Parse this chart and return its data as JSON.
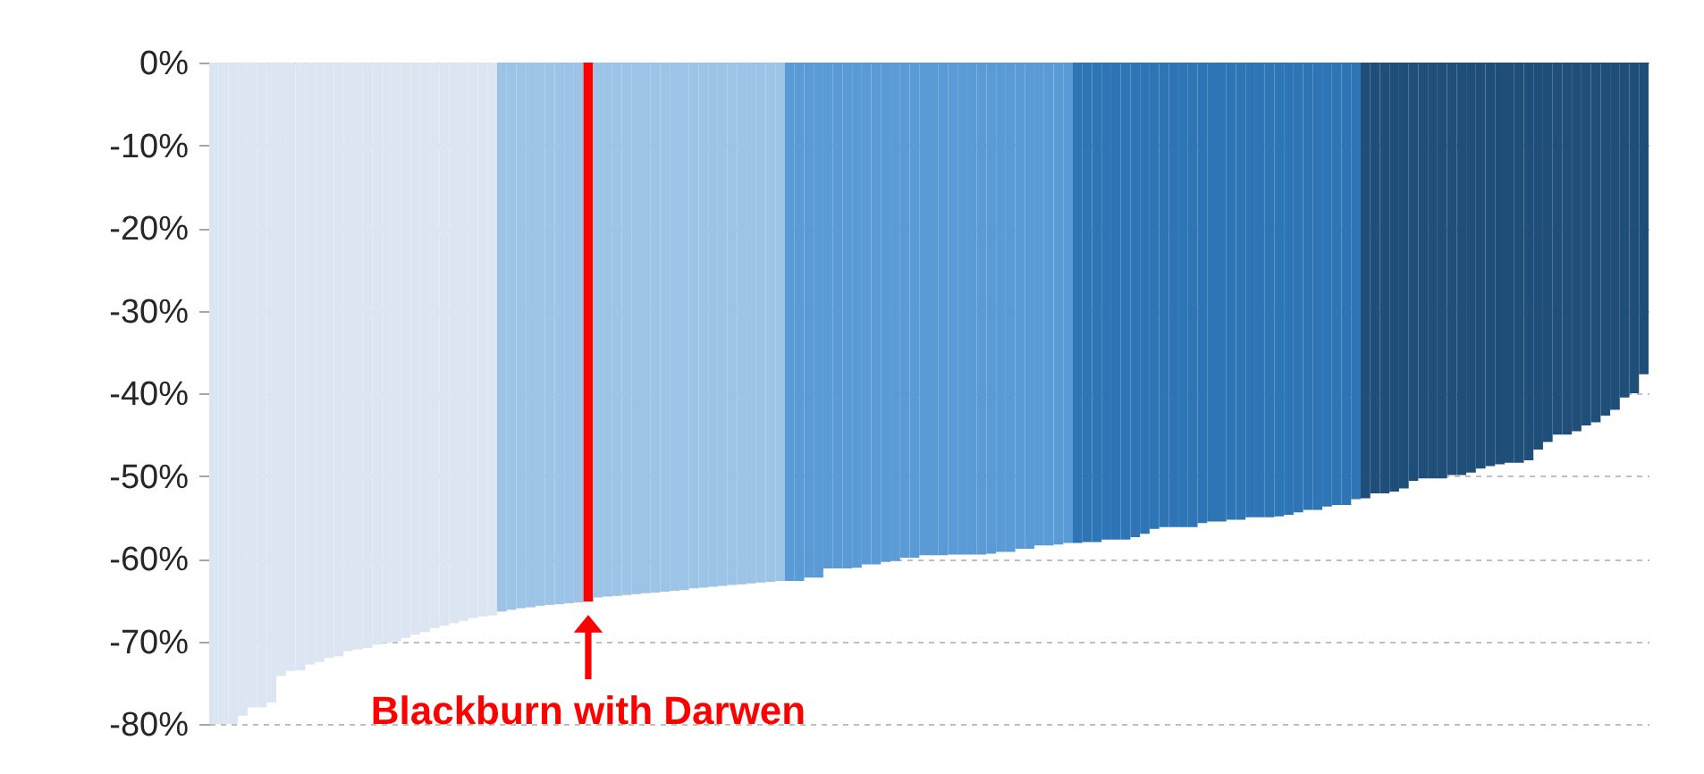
{
  "chart_data": {
    "type": "bar",
    "categories": [
      null,
      null,
      null,
      null,
      null,
      null,
      null,
      null,
      null,
      null,
      null,
      null,
      null,
      null,
      null,
      null,
      null,
      null,
      null,
      null,
      null,
      null,
      null,
      null,
      null,
      null,
      null,
      null,
      null,
      null,
      null,
      null,
      null,
      null,
      null,
      null,
      null,
      null,
      null,
      null,
      null,
      null,
      null,
      null,
      null,
      null,
      null,
      null,
      null,
      null,
      null,
      null,
      null,
      null,
      null,
      null,
      null,
      null,
      null,
      null,
      null,
      null,
      null,
      null,
      null,
      null,
      null,
      null,
      null,
      null,
      null,
      null,
      null,
      null,
      null,
      null,
      null,
      null,
      null,
      null,
      null,
      null,
      null,
      null,
      null,
      null,
      null,
      null,
      null,
      null,
      null,
      null,
      null,
      null,
      null,
      null,
      null,
      null,
      null,
      null,
      null,
      null,
      null,
      null,
      null,
      null,
      null,
      null,
      null,
      null,
      null,
      null,
      null,
      null,
      null,
      null,
      null,
      null,
      null,
      null,
      null,
      null,
      null,
      null,
      null,
      null,
      null,
      null,
      null,
      null,
      null,
      null,
      null,
      null,
      null,
      null,
      null,
      null,
      null,
      null,
      null,
      null,
      null,
      null,
      null,
      null,
      null,
      null,
      null,
      null
    ],
    "values": [
      -80,
      -80,
      -80,
      -79,
      -78,
      -78,
      -77.4,
      -74.2,
      -73.6,
      -73.5,
      -72.8,
      -72.5,
      -72,
      -71.8,
      -71.2,
      -71,
      -70.8,
      -70.4,
      -70.2,
      -70,
      -69.6,
      -69.2,
      -68.9,
      -68.4,
      -68.1,
      -67.8,
      -67.5,
      -67.2,
      -67,
      -66.9,
      -66.4,
      -66.2,
      -66,
      -65.9,
      -65.7,
      -65.6,
      -65.5,
      -65.4,
      -65.3,
      -65.2,
      -64.7,
      -64.6,
      -64.5,
      -64.4,
      -64.3,
      -64.2,
      -64.1,
      -64,
      -63.9,
      -63.8,
      -63.6,
      -63.5,
      -63.4,
      -63.3,
      -63.2,
      -63.1,
      -63,
      -62.9,
      -62.8,
      -62.7,
      -62.7,
      -62.7,
      -62.3,
      -62.3,
      -61.2,
      -61.2,
      -61.2,
      -61.1,
      -60.7,
      -60.7,
      -60.4,
      -60.3,
      -59.9,
      -59.9,
      -59.6,
      -59.6,
      -59.6,
      -59.5,
      -59.5,
      -59.5,
      -59.5,
      -59.4,
      -59.2,
      -59.2,
      -58.8,
      -58.8,
      -58.4,
      -58.4,
      -58.3,
      -58.1,
      -58.1,
      -58,
      -58,
      -57.7,
      -57.7,
      -57.7,
      -57.4,
      -57,
      -56.4,
      -56.2,
      -56.2,
      -56.2,
      -56.2,
      -55.7,
      -55.5,
      -55.5,
      -55.3,
      -55.3,
      -55,
      -55,
      -55,
      -54.9,
      -54.7,
      -54.4,
      -54.1,
      -54.1,
      -53.7,
      -53.5,
      -53.5,
      -52.8,
      -52.7,
      -52.1,
      -52.1,
      -51.9,
      -51.5,
      -50.6,
      -50.3,
      -50.3,
      -50.3,
      -49.9,
      -49.9,
      -49.6,
      -49.1,
      -48.8,
      -48.6,
      -48.4,
      -48.4,
      -48.1,
      -46.8,
      -45.9,
      -45,
      -45,
      -44.6,
      -43.9,
      -43.5,
      -42.7,
      -42,
      -40.5,
      -40,
      -37.7
    ],
    "colors": [
      "#dce6f2",
      "#dce6f2",
      "#dce6f2",
      "#dce6f2",
      "#dce6f2",
      "#dce6f2",
      "#dce6f2",
      "#dce6f2",
      "#dce6f2",
      "#dce6f2",
      "#dce6f2",
      "#dce6f2",
      "#dce6f2",
      "#dce6f2",
      "#dce6f2",
      "#dce6f2",
      "#dce6f2",
      "#dce6f2",
      "#dce6f2",
      "#dce6f2",
      "#dce6f2",
      "#dce6f2",
      "#dce6f2",
      "#dce6f2",
      "#dce6f2",
      "#dce6f2",
      "#dce6f2",
      "#dce6f2",
      "#dce6f2",
      "#dce6f2",
      "#9dc3e6",
      "#9dc3e6",
      "#9dc3e6",
      "#9dc3e6",
      "#9dc3e6",
      "#9dc3e6",
      "#9dc3e6",
      "#9dc3e6",
      "#9dc3e6",
      "#ff0000",
      "#9dc3e6",
      "#9dc3e6",
      "#9dc3e6",
      "#9dc3e6",
      "#9dc3e6",
      "#9dc3e6",
      "#9dc3e6",
      "#9dc3e6",
      "#9dc3e6",
      "#9dc3e6",
      "#9dc3e6",
      "#9dc3e6",
      "#9dc3e6",
      "#9dc3e6",
      "#9dc3e6",
      "#9dc3e6",
      "#9dc3e6",
      "#9dc3e6",
      "#9dc3e6",
      "#9dc3e6",
      "#5b9bd5",
      "#5b9bd5",
      "#5b9bd5",
      "#5b9bd5",
      "#5b9bd5",
      "#5b9bd5",
      "#5b9bd5",
      "#5b9bd5",
      "#5b9bd5",
      "#5b9bd5",
      "#5b9bd5",
      "#5b9bd5",
      "#5b9bd5",
      "#5b9bd5",
      "#5b9bd5",
      "#5b9bd5",
      "#5b9bd5",
      "#5b9bd5",
      "#5b9bd5",
      "#5b9bd5",
      "#5b9bd5",
      "#5b9bd5",
      "#5b9bd5",
      "#5b9bd5",
      "#5b9bd5",
      "#5b9bd5",
      "#5b9bd5",
      "#5b9bd5",
      "#5b9bd5",
      "#5b9bd5",
      "#2e75b6",
      "#2e75b6",
      "#2e75b6",
      "#2e75b6",
      "#2e75b6",
      "#2e75b6",
      "#2e75b6",
      "#2e75b6",
      "#2e75b6",
      "#2e75b6",
      "#2e75b6",
      "#2e75b6",
      "#2e75b6",
      "#2e75b6",
      "#2e75b6",
      "#2e75b6",
      "#2e75b6",
      "#2e75b6",
      "#2e75b6",
      "#2e75b6",
      "#2e75b6",
      "#2e75b6",
      "#2e75b6",
      "#2e75b6",
      "#2e75b6",
      "#2e75b6",
      "#2e75b6",
      "#2e75b6",
      "#2e75b6",
      "#2e75b6",
      "#1f4e79",
      "#1f4e79",
      "#1f4e79",
      "#1f4e79",
      "#1f4e79",
      "#1f4e79",
      "#1f4e79",
      "#1f4e79",
      "#1f4e79",
      "#1f4e79",
      "#1f4e79",
      "#1f4e79",
      "#1f4e79",
      "#1f4e79",
      "#1f4e79",
      "#1f4e79",
      "#1f4e79",
      "#1f4e79",
      "#1f4e79",
      "#1f4e79",
      "#1f4e79",
      "#1f4e79",
      "#1f4e79",
      "#1f4e79",
      "#1f4e79",
      "#1f4e79",
      "#1f4e79",
      "#1f4e79",
      "#1f4e79",
      "#1f4e79"
    ],
    "ylim": [
      -80,
      0
    ],
    "yticks": [
      {
        "value": 0,
        "label": "0%"
      },
      {
        "value": -10,
        "label": "-10%"
      },
      {
        "value": -20,
        "label": "-20%"
      },
      {
        "value": -30,
        "label": "-30%"
      },
      {
        "value": -40,
        "label": "-40%"
      },
      {
        "value": -50,
        "label": "-50%"
      },
      {
        "value": -60,
        "label": "-60%"
      },
      {
        "value": -70,
        "label": "-70%"
      },
      {
        "value": -80,
        "label": "-80%"
      }
    ],
    "grid": "y",
    "tick_labels": "y",
    "annotations": [
      "Blackburn with Darwen"
    ]
  }
}
